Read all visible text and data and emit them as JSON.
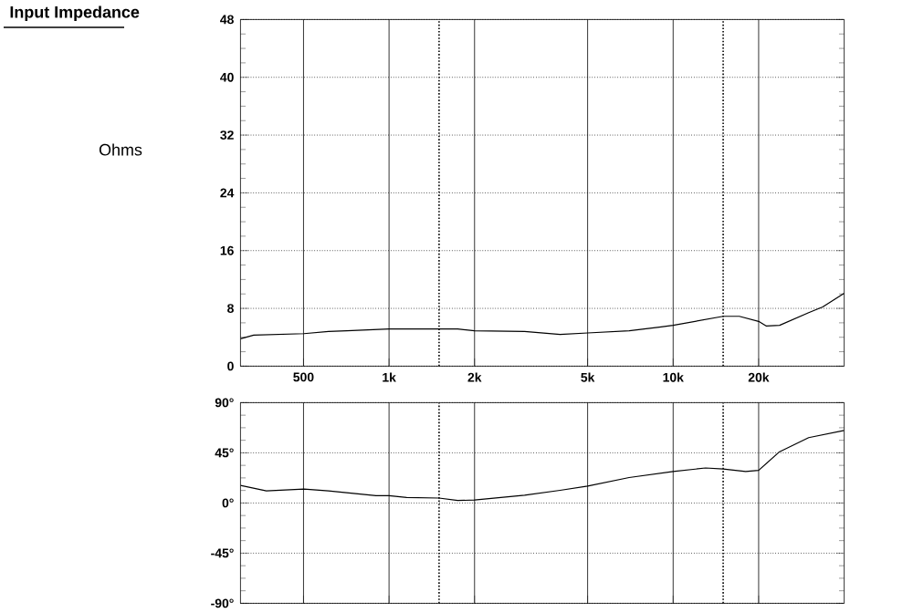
{
  "chart_data": [
    {
      "type": "line",
      "title": "Input Impedance",
      "ylabel": "Ohms",
      "log": "x",
      "grid": true,
      "x": [
        300,
        334,
        502,
        612,
        709,
        1000,
        1744,
        2000,
        3000,
        4000,
        5000,
        7000,
        8940,
        10000,
        15000,
        17100,
        20000,
        21300,
        23700,
        30000,
        33600,
        40000
      ],
      "series": [
        {
          "color": "#000000",
          "values": [
            3.8,
            4.3,
            4.5,
            4.8,
            4.9,
            5.15,
            5.15,
            4.9,
            4.8,
            4.4,
            4.6,
            4.9,
            5.4,
            5.65,
            6.9,
            6.9,
            6.2,
            5.55,
            5.65,
            7.4,
            8.2,
            10.1
          ]
        }
      ],
      "xlim": [
        300,
        40000
      ],
      "xticks": [
        {
          "value": 500,
          "label": "500"
        },
        {
          "value": 1000,
          "label": "1k"
        },
        {
          "value": 2000,
          "label": "2k"
        },
        {
          "value": 5000,
          "label": "5k"
        },
        {
          "value": 10000,
          "label": "10k"
        },
        {
          "value": 20000,
          "label": "20k"
        }
      ],
      "ylim": [
        0,
        48
      ],
      "yticks": [
        0,
        8,
        16,
        24,
        32,
        40,
        48
      ],
      "ref_lines": [
        {
          "axis": "x",
          "value": 1500,
          "line_style": "dotted"
        },
        {
          "axis": "x",
          "value": 15000,
          "line_style": "dotted"
        }
      ]
    },
    {
      "type": "line",
      "log": "x",
      "grid": true,
      "tick_labels": "y",
      "x": [
        300,
        370,
        502,
        612,
        709,
        900,
        1000,
        1154,
        1500,
        1744,
        2000,
        3000,
        4000,
        5000,
        7000,
        10000,
        13000,
        15000,
        18000,
        20000,
        23700,
        30000,
        40000
      ],
      "series": [
        {
          "color": "#000000",
          "values": [
            15.8,
            10.9,
            12.5,
            10.9,
            9.3,
            6.5,
            6.5,
            4.9,
            4.4,
            2.2,
            2.7,
            7,
            11.4,
            15.2,
            22.8,
            28.2,
            31.4,
            30.5,
            28.2,
            29.3,
            46,
            58.6,
            65
          ]
        }
      ],
      "xlim": [
        300,
        40000
      ],
      "xticks": [
        {
          "value": 500,
          "label": null
        },
        {
          "value": 1000,
          "label": null
        },
        {
          "value": 2000,
          "label": null
        },
        {
          "value": 5000,
          "label": null
        },
        {
          "value": 10000,
          "label": null
        },
        {
          "value": 20000,
          "label": null
        }
      ],
      "ylim": [
        -90,
        90
      ],
      "yticks": [
        {
          "value": -90,
          "label": "-90°"
        },
        {
          "value": -45,
          "label": "-45°"
        },
        {
          "value": 0,
          "label": "0°"
        },
        {
          "value": 45,
          "label": "45°"
        },
        {
          "value": 90,
          "label": "90°"
        }
      ],
      "ref_lines": [
        {
          "axis": "x",
          "value": 1500,
          "line_style": "dotted"
        },
        {
          "axis": "x",
          "value": 15000,
          "line_style": "dotted"
        }
      ]
    }
  ]
}
